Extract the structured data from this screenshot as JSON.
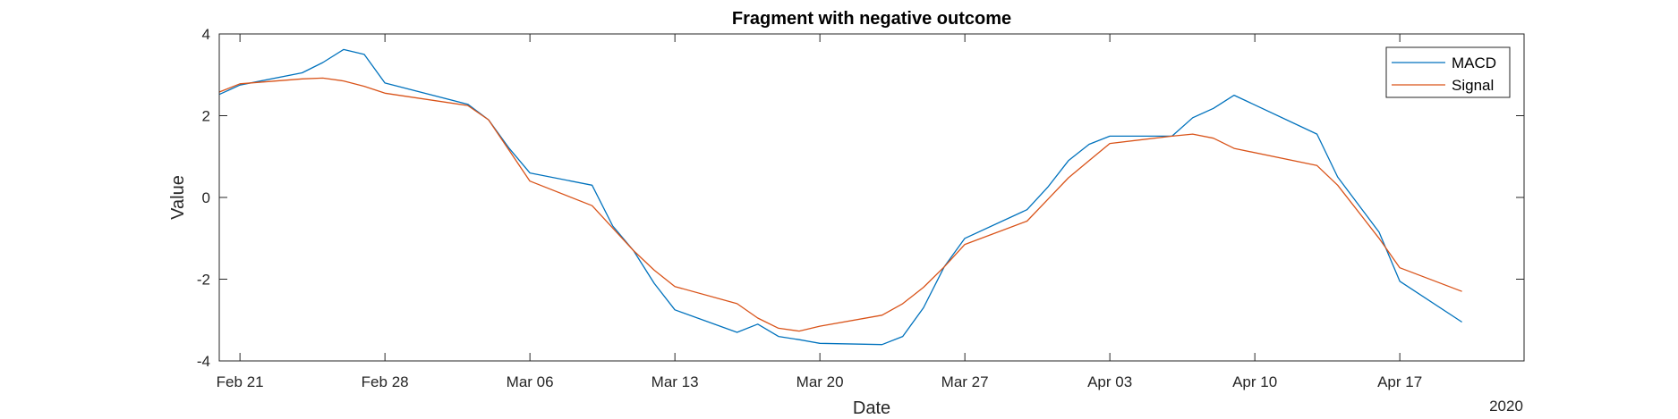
{
  "chart_data": {
    "type": "line",
    "title": "Fragment with negative outcome",
    "xlabel": "Date",
    "ylabel": "Value",
    "year_label": "2020",
    "x_ticks": [
      "Feb 21",
      "Feb 28",
      "Mar 06",
      "Mar 13",
      "Mar 20",
      "Mar 27",
      "Apr 03",
      "Apr 10",
      "Apr 17"
    ],
    "y_ticks": [
      "-4",
      "-2",
      "0",
      "2",
      "4"
    ],
    "xlim": [
      "2020-02-20",
      "2020-04-23"
    ],
    "ylim": [
      -4,
      4
    ],
    "legend_position": "top-right",
    "grid": false,
    "series": [
      {
        "name": "MACD",
        "color": "#0072BD",
        "points": [
          [
            "2020-02-20",
            2.52
          ],
          [
            "2020-02-21",
            2.75
          ],
          [
            "2020-02-24",
            3.05
          ],
          [
            "2020-02-25",
            3.3
          ],
          [
            "2020-02-26",
            3.62
          ],
          [
            "2020-02-27",
            3.5
          ],
          [
            "2020-02-28",
            2.8
          ],
          [
            "2020-03-03",
            2.28
          ],
          [
            "2020-03-04",
            1.9
          ],
          [
            "2020-03-05",
            1.2
          ],
          [
            "2020-03-06",
            0.6
          ],
          [
            "2020-03-09",
            0.3
          ],
          [
            "2020-03-10",
            -0.7
          ],
          [
            "2020-03-11",
            -1.3
          ],
          [
            "2020-03-12",
            -2.1
          ],
          [
            "2020-03-13",
            -2.75
          ],
          [
            "2020-03-16",
            -3.3
          ],
          [
            "2020-03-17",
            -3.1
          ],
          [
            "2020-03-18",
            -3.4
          ],
          [
            "2020-03-19",
            -3.48
          ],
          [
            "2020-03-20",
            -3.57
          ],
          [
            "2020-03-23",
            -3.6
          ],
          [
            "2020-03-24",
            -3.4
          ],
          [
            "2020-03-25",
            -2.7
          ],
          [
            "2020-03-26",
            -1.7
          ],
          [
            "2020-03-27",
            -1.0
          ],
          [
            "2020-03-30",
            -0.3
          ],
          [
            "2020-03-31",
            0.25
          ],
          [
            "2020-04-01",
            0.9
          ],
          [
            "2020-04-02",
            1.3
          ],
          [
            "2020-04-03",
            1.5
          ],
          [
            "2020-04-06",
            1.5
          ],
          [
            "2020-04-07",
            1.95
          ],
          [
            "2020-04-08",
            2.18
          ],
          [
            "2020-04-09",
            2.5
          ],
          [
            "2020-04-13",
            1.55
          ],
          [
            "2020-04-14",
            0.5
          ],
          [
            "2020-04-16",
            -0.85
          ],
          [
            "2020-04-17",
            -2.05
          ],
          [
            "2020-04-20",
            -3.05
          ]
        ]
      },
      {
        "name": "Signal",
        "color": "#D95319",
        "points": [
          [
            "2020-02-20",
            2.58
          ],
          [
            "2020-02-21",
            2.78
          ],
          [
            "2020-02-24",
            2.9
          ],
          [
            "2020-02-25",
            2.92
          ],
          [
            "2020-02-26",
            2.85
          ],
          [
            "2020-02-27",
            2.72
          ],
          [
            "2020-02-28",
            2.55
          ],
          [
            "2020-03-03",
            2.25
          ],
          [
            "2020-03-04",
            1.9
          ],
          [
            "2020-03-05",
            1.15
          ],
          [
            "2020-03-06",
            0.4
          ],
          [
            "2020-03-09",
            -0.2
          ],
          [
            "2020-03-10",
            -0.75
          ],
          [
            "2020-03-11",
            -1.3
          ],
          [
            "2020-03-12",
            -1.78
          ],
          [
            "2020-03-13",
            -2.18
          ],
          [
            "2020-03-16",
            -2.6
          ],
          [
            "2020-03-17",
            -2.95
          ],
          [
            "2020-03-18",
            -3.2
          ],
          [
            "2020-03-19",
            -3.27
          ],
          [
            "2020-03-20",
            -3.15
          ],
          [
            "2020-03-23",
            -2.88
          ],
          [
            "2020-03-24",
            -2.6
          ],
          [
            "2020-03-25",
            -2.2
          ],
          [
            "2020-03-26",
            -1.7
          ],
          [
            "2020-03-27",
            -1.15
          ],
          [
            "2020-03-30",
            -0.58
          ],
          [
            "2020-03-31",
            -0.05
          ],
          [
            "2020-04-01",
            0.48
          ],
          [
            "2020-04-02",
            0.9
          ],
          [
            "2020-04-03",
            1.32
          ],
          [
            "2020-04-06",
            1.5
          ],
          [
            "2020-04-07",
            1.55
          ],
          [
            "2020-04-08",
            1.45
          ],
          [
            "2020-04-09",
            1.2
          ],
          [
            "2020-04-13",
            0.78
          ],
          [
            "2020-04-14",
            0.3
          ],
          [
            "2020-04-16",
            -1.0
          ],
          [
            "2020-04-17",
            -1.72
          ],
          [
            "2020-04-20",
            -2.3
          ]
        ]
      }
    ]
  }
}
